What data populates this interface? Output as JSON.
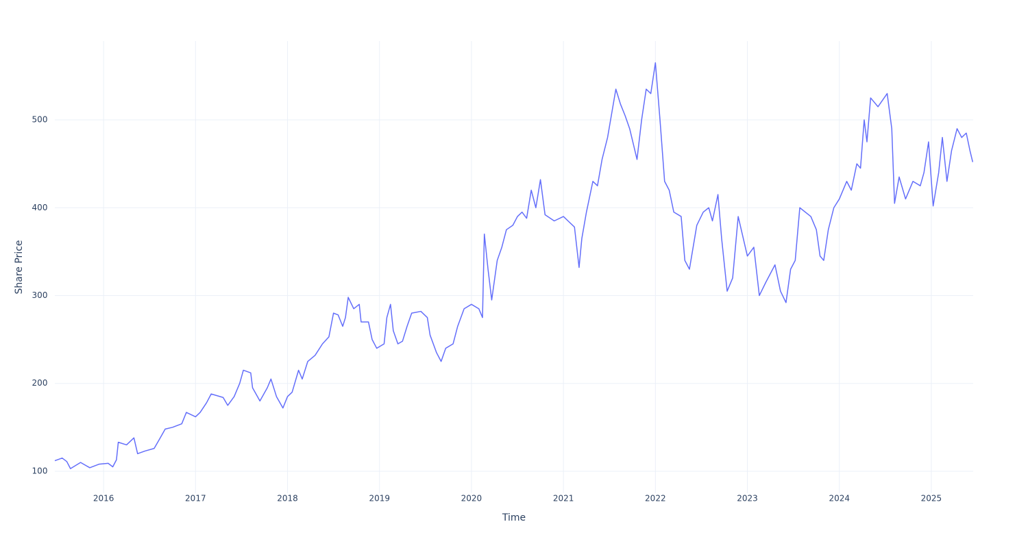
{
  "chart_data": {
    "type": "line",
    "x_label": "Time",
    "y_label": "Share Price",
    "color": "#636efa",
    "grid": true,
    "xlim": [
      2015.47,
      2025.455
    ],
    "ylim": [
      75,
      589.7
    ],
    "xticks": [
      2016,
      2017,
      2018,
      2019,
      2020,
      2021,
      2022,
      2023,
      2024,
      2025
    ],
    "yticks": [
      100,
      200,
      300,
      400,
      500
    ],
    "x": [
      2015.47,
      2015.55,
      2015.6,
      2015.64,
      2015.75,
      2015.85,
      2015.95,
      2016.05,
      2016.1,
      2016.14,
      2016.16,
      2016.25,
      2016.33,
      2016.37,
      2016.45,
      2016.55,
      2016.6,
      2016.67,
      2016.75,
      2016.85,
      2016.9,
      2017.0,
      2017.05,
      2017.12,
      2017.17,
      2017.3,
      2017.35,
      2017.42,
      2017.48,
      2017.52,
      2017.6,
      2017.62,
      2017.7,
      2017.78,
      2017.82,
      2017.88,
      2017.95,
      2018.0,
      2018.05,
      2018.12,
      2018.16,
      2018.22,
      2018.3,
      2018.38,
      2018.45,
      2018.5,
      2018.55,
      2018.6,
      2018.63,
      2018.66,
      2018.72,
      2018.78,
      2018.8,
      2018.88,
      2018.92,
      2018.97,
      2019.05,
      2019.08,
      2019.12,
      2019.15,
      2019.2,
      2019.25,
      2019.3,
      2019.35,
      2019.45,
      2019.52,
      2019.55,
      2019.62,
      2019.67,
      2019.72,
      2019.8,
      2019.85,
      2019.92,
      2020.0,
      2020.08,
      2020.12,
      2020.14,
      2020.18,
      2020.22,
      2020.28,
      2020.33,
      2020.38,
      2020.45,
      2020.5,
      2020.55,
      2020.6,
      2020.65,
      2020.7,
      2020.75,
      2020.8,
      2020.9,
      2021.0,
      2021.05,
      2021.12,
      2021.17,
      2021.2,
      2021.25,
      2021.32,
      2021.37,
      2021.42,
      2021.48,
      2021.57,
      2021.62,
      2021.67,
      2021.72,
      2021.8,
      2021.85,
      2021.9,
      2021.95,
      2022.0,
      2022.05,
      2022.1,
      2022.15,
      2022.2,
      2022.28,
      2022.32,
      2022.37,
      2022.45,
      2022.52,
      2022.58,
      2022.62,
      2022.68,
      2022.72,
      2022.78,
      2022.84,
      2022.9,
      2023.0,
      2023.07,
      2023.13,
      2023.2,
      2023.3,
      2023.36,
      2023.42,
      2023.47,
      2023.52,
      2023.57,
      2023.69,
      2023.75,
      2023.79,
      2023.83,
      2023.88,
      2023.94,
      2024.0,
      2024.08,
      2024.13,
      2024.19,
      2024.23,
      2024.27,
      2024.3,
      2024.34,
      2024.42,
      2024.52,
      2024.57,
      2024.6,
      2024.65,
      2024.72,
      2024.8,
      2024.88,
      2024.92,
      2024.97,
      2025.02,
      2025.08,
      2025.12,
      2025.17,
      2025.22,
      2025.28,
      2025.33,
      2025.38,
      2025.42,
      2025.45
    ],
    "values": [
      112,
      115,
      111,
      103,
      110,
      104,
      108,
      109,
      105,
      113,
      133,
      130,
      138,
      120,
      123,
      126,
      135,
      148,
      150,
      154,
      167,
      162,
      167,
      178,
      188,
      184,
      175,
      185,
      200,
      215,
      212,
      195,
      180,
      195,
      205,
      185,
      172,
      185,
      190,
      215,
      205,
      225,
      232,
      245,
      253,
      280,
      278,
      265,
      275,
      298,
      285,
      290,
      270,
      270,
      250,
      240,
      245,
      275,
      290,
      260,
      245,
      248,
      265,
      280,
      282,
      275,
      255,
      235,
      225,
      240,
      245,
      265,
      285,
      290,
      285,
      275,
      370,
      330,
      295,
      340,
      355,
      375,
      380,
      390,
      395,
      388,
      420,
      400,
      432,
      392,
      385,
      390,
      385,
      378,
      332,
      365,
      395,
      430,
      425,
      455,
      480,
      535,
      518,
      505,
      490,
      455,
      500,
      535,
      530,
      565,
      500,
      430,
      420,
      395,
      390,
      340,
      330,
      380,
      395,
      400,
      385,
      415,
      365,
      305,
      320,
      390,
      345,
      355,
      300,
      315,
      335,
      305,
      292,
      330,
      340,
      400,
      390,
      375,
      345,
      340,
      375,
      400,
      410,
      430,
      420,
      450,
      445,
      500,
      475,
      525,
      515,
      530,
      490,
      405,
      435,
      410,
      430,
      425,
      440,
      475,
      402,
      440,
      480,
      430,
      465,
      490,
      480,
      485,
      465,
      452
    ]
  }
}
